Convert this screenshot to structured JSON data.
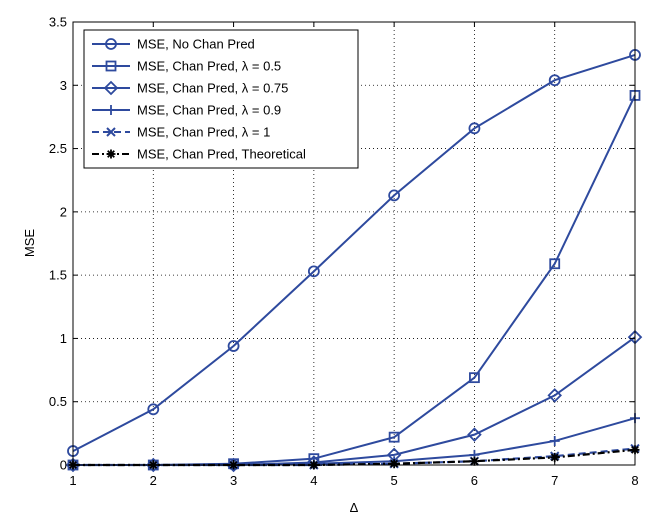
{
  "chart_data": {
    "type": "line",
    "title": "",
    "xlabel": "Δ",
    "ylabel": "MSE",
    "xlim": [
      1,
      8
    ],
    "ylim": [
      0,
      3.5
    ],
    "x_ticks": [
      "1",
      "2",
      "3",
      "4",
      "5",
      "6",
      "7",
      "8"
    ],
    "y_ticks": [
      "0",
      "0.5",
      "1",
      "1.5",
      "2",
      "2.5",
      "3",
      "3.5"
    ],
    "grid": true,
    "legend_position": "top-left",
    "color": "#2e4a9e",
    "x": [
      1,
      2,
      3,
      4,
      5,
      6,
      7,
      8
    ],
    "series": [
      {
        "name": "MSE, No Chan Pred",
        "marker": "circle",
        "dash": "solid",
        "values": [
          0.11,
          0.44,
          0.94,
          1.53,
          2.13,
          2.66,
          3.04,
          3.24
        ]
      },
      {
        "name": "MSE, Chan Pred, λ = 0.5",
        "marker": "square",
        "dash": "solid",
        "values": [
          0.0,
          0.0,
          0.01,
          0.05,
          0.22,
          0.69,
          1.59,
          2.92
        ]
      },
      {
        "name": "MSE, Chan Pred, λ = 0.75",
        "marker": "diamond",
        "dash": "solid",
        "values": [
          0.0,
          0.0,
          0.0,
          0.02,
          0.08,
          0.24,
          0.55,
          1.01
        ]
      },
      {
        "name": "MSE, Chan Pred, λ = 0.9",
        "marker": "plus",
        "dash": "solid",
        "values": [
          0.0,
          0.0,
          0.0,
          0.01,
          0.03,
          0.08,
          0.19,
          0.37
        ]
      },
      {
        "name": "MSE, Chan Pred, λ = 1",
        "marker": "x",
        "dash": "dashed",
        "values": [
          0.0,
          0.0,
          0.0,
          0.0,
          0.01,
          0.03,
          0.07,
          0.13
        ]
      },
      {
        "name": "MSE, Chan Pred, Theoretical",
        "marker": "star",
        "dash": "dashdot",
        "color": "#000000",
        "values": [
          0.0,
          0.0,
          0.0,
          0.0,
          0.01,
          0.03,
          0.06,
          0.12
        ]
      }
    ]
  }
}
